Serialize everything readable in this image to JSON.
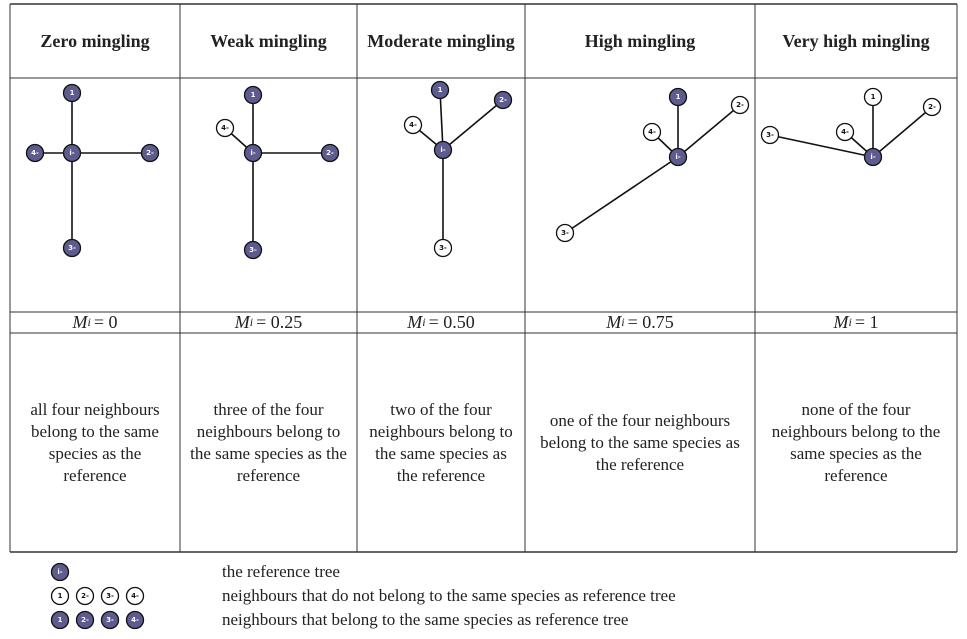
{
  "symbol": "M",
  "subscript": "i",
  "columns": [
    {
      "title": "Zero mingling",
      "value": "= 0",
      "description": "all four neighbours belong to the same species as the reference",
      "nodes": [
        {
          "label": "1",
          "filled": true
        },
        {
          "label": "2-",
          "filled": true
        },
        {
          "label": "3-",
          "filled": true
        },
        {
          "label": "4-",
          "filled": true
        },
        {
          "label": "i-",
          "filled": true
        }
      ]
    },
    {
      "title": "Weak mingling",
      "value": "= 0.25",
      "description": "three of the four neighbours belong to the same species as the reference",
      "nodes": [
        {
          "label": "1",
          "filled": true
        },
        {
          "label": "2-",
          "filled": true
        },
        {
          "label": "3-",
          "filled": true
        },
        {
          "label": "4-",
          "filled": false
        },
        {
          "label": "i-",
          "filled": true
        }
      ]
    },
    {
      "title": "Moderate mingling",
      "value": "= 0.50",
      "description": "two of the four neighbours belong to the same species as the reference",
      "nodes": [
        {
          "label": "1",
          "filled": true
        },
        {
          "label": "2-",
          "filled": true
        },
        {
          "label": "3-",
          "filled": false
        },
        {
          "label": "4-",
          "filled": false
        },
        {
          "label": "i-",
          "filled": true
        }
      ]
    },
    {
      "title": "High mingling",
      "value": "= 0.75",
      "description": "one of the four neighbours belong to the same species as the reference",
      "nodes": [
        {
          "label": "1",
          "filled": true
        },
        {
          "label": "2-",
          "filled": false
        },
        {
          "label": "3-",
          "filled": false
        },
        {
          "label": "4-",
          "filled": false
        },
        {
          "label": "i-",
          "filled": true
        }
      ]
    },
    {
      "title": "Very high mingling",
      "value": "= 1",
      "description": "none of the four neighbours belong to the same species as the reference",
      "nodes": [
        {
          "label": "1",
          "filled": false
        },
        {
          "label": "2-",
          "filled": false
        },
        {
          "label": "3-",
          "filled": false
        },
        {
          "label": "4-",
          "filled": false
        },
        {
          "label": "i-",
          "filled": true
        }
      ]
    }
  ],
  "legend": [
    {
      "symbols": [
        {
          "label": "i-",
          "filled": true
        }
      ],
      "text": "the reference tree"
    },
    {
      "symbols": [
        {
          "label": "1",
          "filled": false
        },
        {
          "label": "2-",
          "filled": false
        },
        {
          "label": "3-",
          "filled": false
        },
        {
          "label": "4-",
          "filled": false
        }
      ],
      "text": "neighbours that do not belong to the same species as reference tree"
    },
    {
      "symbols": [
        {
          "label": "1",
          "filled": true
        },
        {
          "label": "2-",
          "filled": true
        },
        {
          "label": "3-",
          "filled": true
        },
        {
          "label": "4-",
          "filled": true
        }
      ],
      "text": "neighbours that belong to the same species as reference tree"
    }
  ]
}
